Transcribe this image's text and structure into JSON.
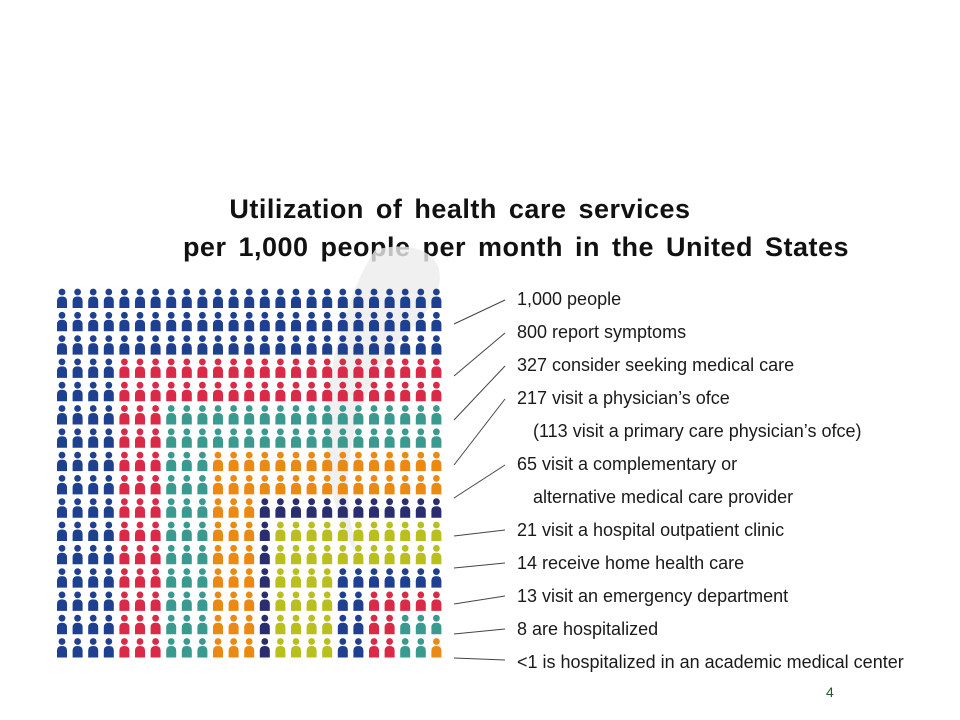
{
  "chart_data": {
    "type": "pictogram",
    "title_lines": [
      "Utilization of health care services",
      "per 1,000 people per month in the United States"
    ],
    "grid": {
      "columns": 25,
      "rows": 16,
      "icon": "person-icon"
    },
    "categories": [
      {
        "value": 1000,
        "label": "1,000 people",
        "color": "#1f3f8f"
      },
      {
        "value": 800,
        "label": "800 report symptoms",
        "color": "#d92a47"
      },
      {
        "value": 327,
        "label": "327 consider seeking medical care",
        "color": "#3a9a90"
      },
      {
        "value": 217,
        "label": "217 visit a physician’s ofce",
        "sublabel": "(113 visit a primary care physician’s ofce)",
        "color": "#ea8a14"
      },
      {
        "value": 65,
        "label": "65 visit a complementary or",
        "sublabel": "alternative medical care provider",
        "color": "#2a2d6e"
      },
      {
        "value": 21,
        "label": "21 visit a hospital outpatient clinic",
        "color": "#b8bf1e"
      },
      {
        "value": 14,
        "label": "14 receive home health care",
        "color": "#1f3f8f"
      },
      {
        "value": 13,
        "label": "13 visit an emergency department",
        "color": "#d92a47"
      },
      {
        "value": 8,
        "label": "8 are hospitalized",
        "color": "#3a9a90"
      },
      {
        "value": 1,
        "label": "<1 is hospitalized in an academic medical center",
        "color": "#ea8a14"
      }
    ]
  },
  "footer": {
    "page_number": "4"
  }
}
